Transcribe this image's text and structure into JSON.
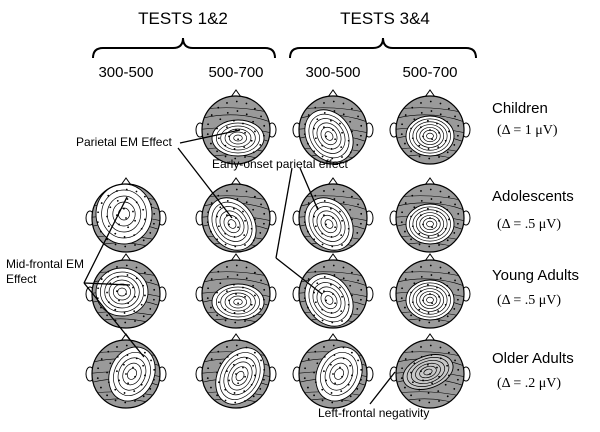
{
  "figure": {
    "group_headers": [
      "TESTS 1&2",
      "TESTS 3&4"
    ],
    "time_windows": [
      "300-500",
      "500-700",
      "300-500",
      "500-700"
    ],
    "rows": [
      {
        "group": "Children",
        "delta": "(Δ = 1 μV)",
        "maps": [
          null,
          "pos-central",
          "pos-left-parietal",
          "pos-mid-parietal"
        ]
      },
      {
        "group": "Adolescents",
        "delta": "(Δ = .5 μV)",
        "maps": [
          "pos-frontal",
          "pos-left-parietal",
          "pos-left-parietal",
          "pos-mid-parietal"
        ]
      },
      {
        "group": "Young Adults",
        "delta": "(Δ = .5 μV)",
        "maps": [
          "pos-midfrontal",
          "pos-central",
          "pos-left-parietal",
          "pos-mid-parietal"
        ]
      },
      {
        "group": "Older Adults",
        "delta": "(Δ = .2 μV)",
        "maps": [
          "pos-right-frontal",
          "swirl-right",
          "pos-right-frontal",
          "neg-left-frontal"
        ]
      }
    ],
    "annotations": {
      "parietal_em": "Parietal EM Effect",
      "early_onset": "Early-onset parietal effect",
      "mid_frontal_line1": "Mid-frontal EM",
      "mid_frontal_line2": "Effect",
      "left_frontal_neg": "Left-frontal negativity"
    },
    "colors": {
      "negative_fill": "#9a9a9a",
      "positive_fill": "#ffffff",
      "contour": "#000000"
    }
  }
}
